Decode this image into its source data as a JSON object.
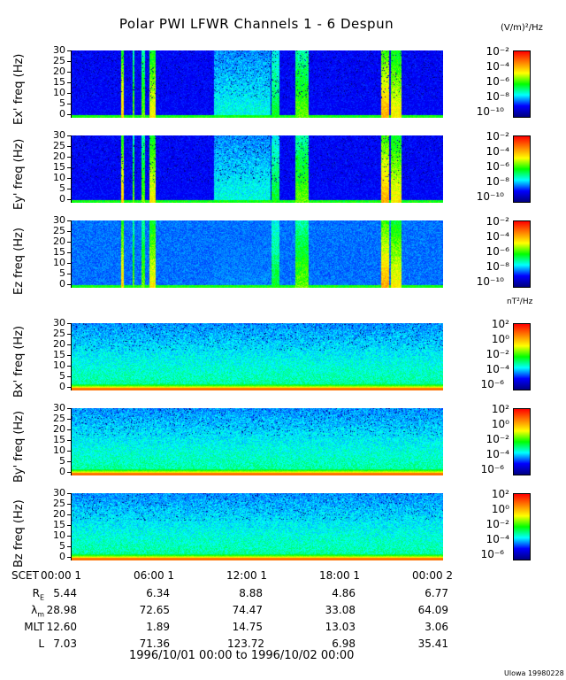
{
  "title": "Polar PWI LFWR Channels 1 - 6 Despun",
  "e_units": "(V/m)²/Hz",
  "b_units": "nT²/Hz",
  "credit": "Ulowa 19980228",
  "date_range": "1996/10/01 00:00 to 1996/10/02 00:00",
  "colors": {
    "colormap": [
      "#00007f",
      "#0000ff",
      "#00ffff",
      "#00ff00",
      "#ffff00",
      "#ff7f00",
      "#ff0000"
    ]
  },
  "chart_data": {
    "type": "heatmap",
    "title": "Polar PWI LFWR Channels 1 - 6 Despun",
    "x_axis": {
      "label": "SCET",
      "ticks": [
        "00:00  1",
        "06:00  1",
        "12:00  1",
        "18:00  1",
        "00:00  2"
      ],
      "range": [
        "1996/10/01 00:00",
        "1996/10/02 00:00"
      ]
    },
    "panels": [
      {
        "ylabel": "Ex' freq (Hz)",
        "yticks": [
          "30",
          "25",
          "20",
          "15",
          "10",
          "5",
          "0"
        ],
        "ylim": [
          0,
          30
        ],
        "colorbar_ticks": [
          "10⁻²",
          "10⁻⁴",
          "10⁻⁶",
          "10⁻⁸",
          "10⁻¹⁰"
        ],
        "colorbar_range": [
          "1e-11",
          "1e-2"
        ],
        "colorbar_scale": "log"
      },
      {
        "ylabel": "Ey' freq (Hz)",
        "yticks": [
          "30",
          "25",
          "20",
          "15",
          "10",
          "5",
          "0"
        ],
        "ylim": [
          0,
          30
        ],
        "colorbar_ticks": [
          "10⁻²",
          "10⁻⁴",
          "10⁻⁶",
          "10⁻⁸",
          "10⁻¹⁰"
        ],
        "colorbar_range": [
          "1e-11",
          "1e-2"
        ],
        "colorbar_scale": "log"
      },
      {
        "ylabel": "Ez freq (Hz)",
        "yticks": [
          "30",
          "25",
          "20",
          "15",
          "10",
          "5",
          "0"
        ],
        "ylim": [
          0,
          30
        ],
        "colorbar_ticks": [
          "10⁻²",
          "10⁻⁴",
          "10⁻⁶",
          "10⁻⁸",
          "10⁻¹⁰"
        ],
        "colorbar_range": [
          "1e-11",
          "1e-2"
        ],
        "colorbar_scale": "log"
      },
      {
        "ylabel": "Bx' freq (Hz)",
        "yticks": [
          "30",
          "25",
          "20",
          "15",
          "10",
          "5",
          "0"
        ],
        "ylim": [
          0,
          30
        ],
        "colorbar_ticks": [
          "10²",
          "10⁰",
          "10⁻²",
          "10⁻⁴",
          "10⁻⁶"
        ],
        "colorbar_range": [
          "1e-7",
          "1e2"
        ],
        "colorbar_scale": "log"
      },
      {
        "ylabel": "By' freq (Hz)",
        "yticks": [
          "30",
          "25",
          "20",
          "15",
          "10",
          "5",
          "0"
        ],
        "ylim": [
          0,
          30
        ],
        "colorbar_ticks": [
          "10²",
          "10⁰",
          "10⁻²",
          "10⁻⁴",
          "10⁻⁶"
        ],
        "colorbar_range": [
          "1e-7",
          "1e2"
        ],
        "colorbar_scale": "log"
      },
      {
        "ylabel": "Bz freq (Hz)",
        "yticks": [
          "30",
          "25",
          "20",
          "15",
          "10",
          "5",
          "0"
        ],
        "ylim": [
          0,
          30
        ],
        "colorbar_ticks": [
          "10²",
          "10⁰",
          "10⁻²",
          "10⁻⁴",
          "10⁻⁶"
        ],
        "colorbar_range": [
          "1e-7",
          "1e2"
        ],
        "colorbar_scale": "log"
      }
    ],
    "ephemeris": [
      {
        "label": "R",
        "sub": "E",
        "values": [
          "5.44",
          "6.34",
          "8.88",
          "4.86",
          "6.77"
        ]
      },
      {
        "label": "λ",
        "sub": "m",
        "values": [
          "28.98",
          "72.65",
          "74.47",
          "33.08",
          "64.09"
        ]
      },
      {
        "label": "MLT",
        "sub": "",
        "values": [
          "12.60",
          "1.89",
          "14.75",
          "13.03",
          "3.06"
        ]
      },
      {
        "label": "L",
        "sub": "",
        "values": [
          "7.03",
          "71.36",
          "123.72",
          "6.98",
          "35.41"
        ]
      }
    ]
  }
}
